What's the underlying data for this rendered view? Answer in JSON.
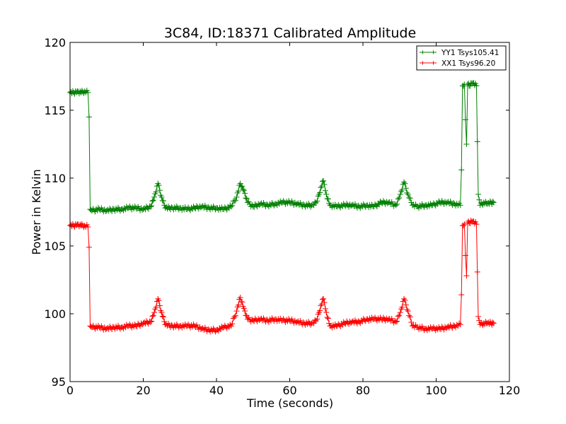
{
  "chart_data": {
    "type": "line",
    "title": "3C84, ID:18371 Calibrated Amplitude",
    "xlabel": "Time (seconds)",
    "ylabel": "Power in Kelvin",
    "xlim": [
      0,
      120
    ],
    "ylim": [
      95,
      120
    ],
    "xticks": [
      0,
      20,
      40,
      60,
      80,
      100,
      120
    ],
    "yticks": [
      95,
      100,
      105,
      110,
      115,
      120
    ],
    "grid": false,
    "legend_position": "top-right",
    "marker": "+",
    "series": [
      {
        "name": "YY1 Tsys105.41",
        "color": "#008000",
        "points": [
          [
            0,
            116.3
          ],
          [
            1,
            116.3
          ],
          [
            2,
            116.4
          ],
          [
            3,
            116.3
          ],
          [
            4,
            116.4
          ],
          [
            4.9,
            116.3
          ],
          [
            5.2,
            114.5
          ],
          [
            5.5,
            107.7
          ],
          [
            6,
            107.6
          ],
          [
            8,
            107.7
          ],
          [
            10,
            107.6
          ],
          [
            12,
            107.7
          ],
          [
            14,
            107.7
          ],
          [
            16,
            107.8
          ],
          [
            18,
            107.8
          ],
          [
            20,
            107.7
          ],
          [
            22,
            107.9
          ],
          [
            23,
            108.6
          ],
          [
            24,
            109.6
          ],
          [
            25,
            108.6
          ],
          [
            26,
            107.8
          ],
          [
            28,
            107.8
          ],
          [
            30,
            107.8
          ],
          [
            32,
            107.7
          ],
          [
            34,
            107.8
          ],
          [
            36,
            107.9
          ],
          [
            38,
            107.8
          ],
          [
            40,
            107.8
          ],
          [
            42,
            107.7
          ],
          [
            44,
            107.9
          ],
          [
            45.5,
            108.6
          ],
          [
            46.5,
            109.6
          ],
          [
            47.5,
            109.1
          ],
          [
            48.5,
            108.2
          ],
          [
            50,
            107.9
          ],
          [
            52,
            108.1
          ],
          [
            54,
            108.0
          ],
          [
            56,
            108.1
          ],
          [
            58,
            108.2
          ],
          [
            60,
            108.2
          ],
          [
            62,
            108.1
          ],
          [
            64,
            108.0
          ],
          [
            66,
            108.0
          ],
          [
            67.5,
            108.3
          ],
          [
            68.5,
            109.3
          ],
          [
            69.2,
            109.8
          ],
          [
            70,
            108.8
          ],
          [
            71,
            108.0
          ],
          [
            73,
            107.9
          ],
          [
            75,
            108.0
          ],
          [
            77,
            108.0
          ],
          [
            79,
            107.9
          ],
          [
            81,
            108.0
          ],
          [
            83,
            107.9
          ],
          [
            85,
            108.2
          ],
          [
            87,
            108.2
          ],
          [
            89,
            108.0
          ],
          [
            90.2,
            108.8
          ],
          [
            91.2,
            109.7
          ],
          [
            92.3,
            108.8
          ],
          [
            93.5,
            108.0
          ],
          [
            95,
            107.9
          ],
          [
            97,
            108.0
          ],
          [
            99,
            108.0
          ],
          [
            101,
            108.2
          ],
          [
            103,
            108.2
          ],
          [
            105,
            108.1
          ],
          [
            106.6,
            108.0
          ],
          [
            106.9,
            110.6
          ],
          [
            107.2,
            116.8
          ],
          [
            107.7,
            116.9
          ],
          [
            108,
            114.3
          ],
          [
            108.3,
            112.5
          ],
          [
            108.6,
            116.9
          ],
          [
            109,
            116.8
          ],
          [
            110,
            117.0
          ],
          [
            111,
            116.8
          ],
          [
            111.5,
            108.8
          ],
          [
            112,
            108.0
          ],
          [
            113,
            108.2
          ],
          [
            114,
            108.1
          ],
          [
            115,
            108.2
          ],
          [
            115.7,
            108.2
          ]
        ]
      },
      {
        "name": "XX1 Tsys96.20",
        "color": "#ff0000",
        "points": [
          [
            0,
            106.5
          ],
          [
            1,
            106.5
          ],
          [
            2,
            106.6
          ],
          [
            3,
            106.5
          ],
          [
            4,
            106.5
          ],
          [
            4.9,
            106.4
          ],
          [
            5.2,
            104.9
          ],
          [
            5.5,
            99.1
          ],
          [
            6,
            99.0
          ],
          [
            8,
            99.0
          ],
          [
            10,
            98.9
          ],
          [
            12,
            99.0
          ],
          [
            14,
            99.0
          ],
          [
            16,
            99.1
          ],
          [
            18,
            99.1
          ],
          [
            20,
            99.3
          ],
          [
            22,
            99.4
          ],
          [
            23,
            100.1
          ],
          [
            24,
            101.1
          ],
          [
            25,
            100.1
          ],
          [
            26,
            99.2
          ],
          [
            28,
            99.1
          ],
          [
            30,
            99.1
          ],
          [
            32,
            99.1
          ],
          [
            34,
            99.1
          ],
          [
            36,
            98.9
          ],
          [
            38,
            98.8
          ],
          [
            40,
            98.8
          ],
          [
            42,
            99.0
          ],
          [
            44,
            99.1
          ],
          [
            45.5,
            100.2
          ],
          [
            46.5,
            101.2
          ],
          [
            47.5,
            100.4
          ],
          [
            48.5,
            99.6
          ],
          [
            50,
            99.5
          ],
          [
            52,
            99.6
          ],
          [
            54,
            99.5
          ],
          [
            56,
            99.6
          ],
          [
            58,
            99.5
          ],
          [
            60,
            99.5
          ],
          [
            62,
            99.4
          ],
          [
            64,
            99.3
          ],
          [
            66,
            99.3
          ],
          [
            67.5,
            99.6
          ],
          [
            68.5,
            100.6
          ],
          [
            69.2,
            101.1
          ],
          [
            70,
            100.1
          ],
          [
            71,
            99.1
          ],
          [
            73,
            99.1
          ],
          [
            75,
            99.3
          ],
          [
            77,
            99.4
          ],
          [
            79,
            99.4
          ],
          [
            81,
            99.6
          ],
          [
            83,
            99.6
          ],
          [
            85,
            99.6
          ],
          [
            87,
            99.6
          ],
          [
            89,
            99.4
          ],
          [
            90.2,
            100.1
          ],
          [
            91.2,
            101.1
          ],
          [
            92.3,
            100.2
          ],
          [
            93.5,
            99.1
          ],
          [
            95,
            99.0
          ],
          [
            97,
            98.9
          ],
          [
            99,
            98.9
          ],
          [
            101,
            98.9
          ],
          [
            103,
            99.0
          ],
          [
            105,
            99.1
          ],
          [
            106.6,
            99.2
          ],
          [
            106.9,
            101.4
          ],
          [
            107.2,
            106.5
          ],
          [
            107.7,
            106.6
          ],
          [
            108,
            104.3
          ],
          [
            108.3,
            102.8
          ],
          [
            108.6,
            106.7
          ],
          [
            109,
            106.7
          ],
          [
            110,
            106.8
          ],
          [
            111,
            106.6
          ],
          [
            111.5,
            99.8
          ],
          [
            112,
            99.2
          ],
          [
            113,
            99.3
          ],
          [
            114,
            99.3
          ],
          [
            115,
            99.3
          ],
          [
            115.7,
            99.3
          ]
        ]
      }
    ]
  }
}
